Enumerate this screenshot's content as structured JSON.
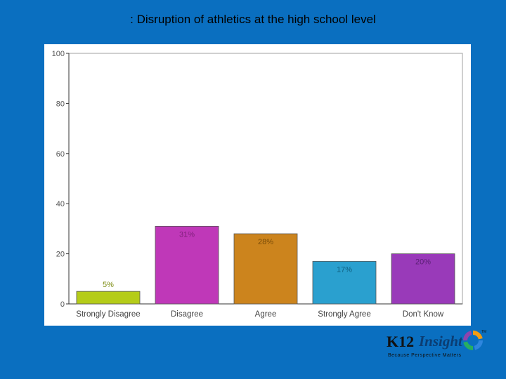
{
  "title": ": Disruption of athletics at the high school level",
  "logo": {
    "k12": "K12",
    "insight": "Insight",
    "tm": "TM",
    "tagline": "Because Perspective Matters",
    "ring_colors": [
      "#f39c12",
      "#2e86de",
      "#27ae60",
      "#8e44ad"
    ]
  },
  "chart_data": {
    "type": "bar",
    "categories": [
      "Strongly Disagree",
      "Disagree",
      "Agree",
      "Strongly Agree",
      "Don't Know"
    ],
    "values": [
      5,
      31,
      28,
      17,
      20
    ],
    "data_labels": [
      "5%",
      "31%",
      "28%",
      "17%",
      "20%"
    ],
    "colors": [
      "#b5cc19",
      "#bf38b8",
      "#cc841d",
      "#2aa0cf",
      "#993ab9"
    ],
    "label_colors": [
      "#7a8a0e",
      "#7f1f7a",
      "#7a4c08",
      "#0f5f80",
      "#5a1f75"
    ],
    "ylim": [
      0,
      100
    ],
    "yticks": [
      0,
      20,
      40,
      60,
      80,
      100
    ],
    "grid": false,
    "legend": "none"
  }
}
